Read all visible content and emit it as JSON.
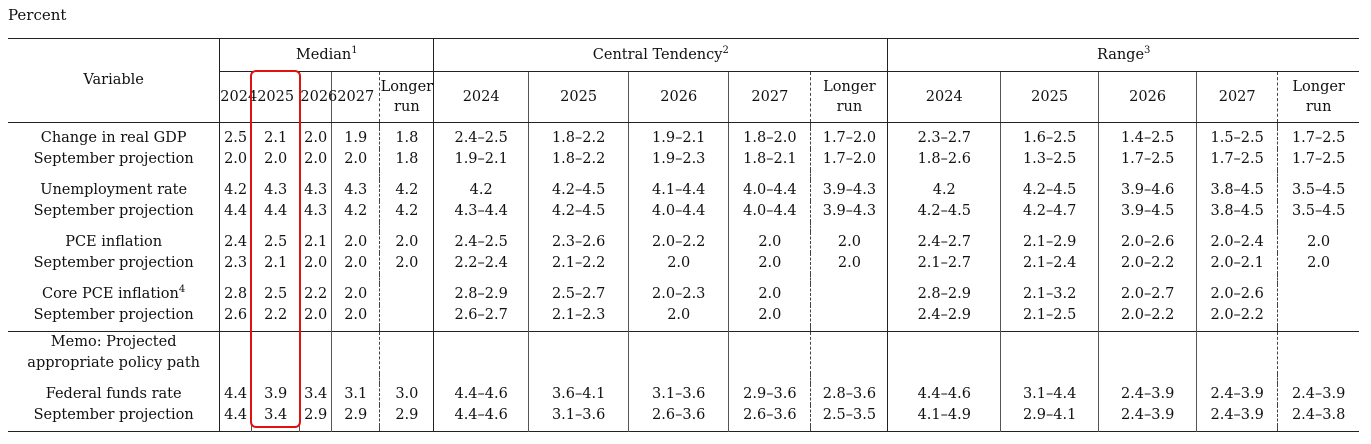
{
  "caption": "Percent",
  "header": {
    "variable": "Variable",
    "groups": [
      {
        "label": "Median",
        "note": "1"
      },
      {
        "label": "Central Tendency",
        "note": "2"
      },
      {
        "label": "Range",
        "note": "3"
      }
    ],
    "years": [
      "2024",
      "2025",
      "2026",
      "2027"
    ],
    "longer_run_1": "Longer",
    "longer_run_2": "run"
  },
  "rows": [
    {
      "label": "Change in real GDP",
      "cells": [
        "2.5",
        "2.1",
        "2.0",
        "1.9",
        "1.8",
        "2.4–2.5",
        "1.8–2.2",
        "1.9–2.1",
        "1.8–2.0",
        "1.7–2.0",
        "2.3–2.7",
        "1.6–2.5",
        "1.4–2.5",
        "1.5–2.5",
        "1.7–2.5"
      ]
    },
    {
      "label": "September projection",
      "cells": [
        "2.0",
        "2.0",
        "2.0",
        "2.0",
        "1.8",
        "1.9–2.1",
        "1.8–2.2",
        "1.9–2.3",
        "1.8–2.1",
        "1.7–2.0",
        "1.8–2.6",
        "1.3–2.5",
        "1.7–2.5",
        "1.7–2.5",
        "1.7–2.5"
      ]
    },
    {
      "label": "Unemployment rate",
      "cells": [
        "4.2",
        "4.3",
        "4.3",
        "4.3",
        "4.2",
        "4.2",
        "4.2–4.5",
        "4.1–4.4",
        "4.0–4.4",
        "3.9–4.3",
        "4.2",
        "4.2–4.5",
        "3.9–4.6",
        "3.8–4.5",
        "3.5–4.5"
      ]
    },
    {
      "label": "September projection",
      "cells": [
        "4.4",
        "4.4",
        "4.3",
        "4.2",
        "4.2",
        "4.3–4.4",
        "4.2–4.5",
        "4.0–4.4",
        "4.0–4.4",
        "3.9–4.3",
        "4.2–4.5",
        "4.2–4.7",
        "3.9–4.5",
        "3.8–4.5",
        "3.5–4.5"
      ]
    },
    {
      "label": "PCE inflation",
      "cells": [
        "2.4",
        "2.5",
        "2.1",
        "2.0",
        "2.0",
        "2.4–2.5",
        "2.3–2.6",
        "2.0–2.2",
        "2.0",
        "2.0",
        "2.4–2.7",
        "2.1–2.9",
        "2.0–2.6",
        "2.0–2.4",
        "2.0"
      ]
    },
    {
      "label": "September projection",
      "cells": [
        "2.3",
        "2.1",
        "2.0",
        "2.0",
        "2.0",
        "2.2–2.4",
        "2.1–2.2",
        "2.0",
        "2.0",
        "2.0",
        "2.1–2.7",
        "2.1–2.4",
        "2.0–2.2",
        "2.0–2.1",
        "2.0"
      ]
    },
    {
      "label": "Core PCE inflation",
      "note": "4",
      "cells": [
        "2.8",
        "2.5",
        "2.2",
        "2.0",
        "",
        "2.8–2.9",
        "2.5–2.7",
        "2.0–2.3",
        "2.0",
        "",
        "2.8–2.9",
        "2.1–3.2",
        "2.0–2.7",
        "2.0–2.6",
        ""
      ]
    },
    {
      "label": "September projection",
      "cells": [
        "2.6",
        "2.2",
        "2.0",
        "2.0",
        "",
        "2.6–2.7",
        "2.1–2.3",
        "2.0",
        "2.0",
        "",
        "2.4–2.9",
        "2.1–2.5",
        "2.0–2.2",
        "2.0–2.2",
        ""
      ]
    }
  ],
  "memo": {
    "line1": "Memo: Projected",
    "line2": "appropriate policy path"
  },
  "funds_rows": [
    {
      "label": "Federal funds rate",
      "cells": [
        "4.4",
        "3.9",
        "3.4",
        "3.1",
        "3.0",
        "4.4–4.6",
        "3.6–4.1",
        "3.1–3.6",
        "2.9–3.6",
        "2.8–3.6",
        "4.4–4.6",
        "3.1–4.4",
        "2.4–3.9",
        "2.4–3.9",
        "2.4–3.9"
      ]
    },
    {
      "label": "September projection",
      "cells": [
        "4.4",
        "3.4",
        "2.9",
        "2.9",
        "2.9",
        "4.4–4.6",
        "3.1–3.6",
        "2.6–3.6",
        "2.6–3.6",
        "2.5–3.5",
        "4.1–4.9",
        "2.9–4.1",
        "2.4–3.9",
        "2.4–3.9",
        "2.4–3.8"
      ]
    }
  ],
  "highlight": {
    "column": "2025",
    "color": "#e11111"
  }
}
